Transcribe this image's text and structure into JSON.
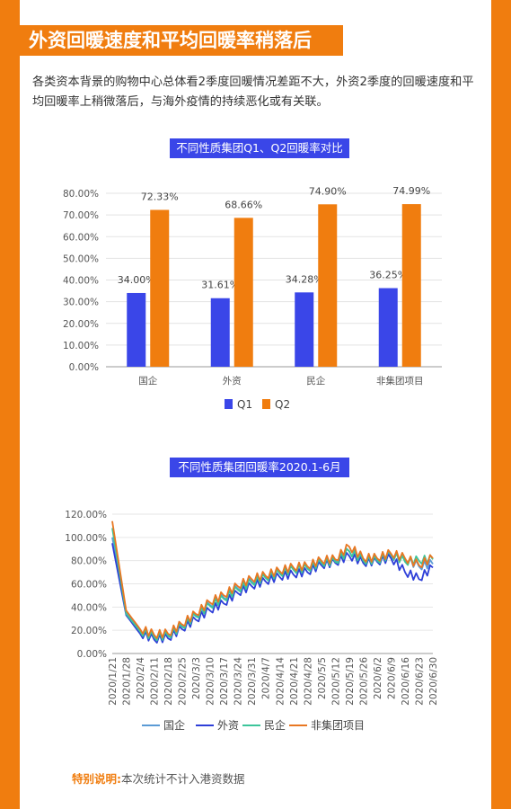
{
  "header": {
    "title": "外资回暖速度和平均回暖率稍落后"
  },
  "intro_text": "各类资本背景的购物中心总体看2季度回暖情况差距不大，外资2季度的回暖速度和平均回暖率上稍微落后，与海外疫情的持续恶化或有关联。",
  "colors": {
    "accent": "#F07D0F",
    "tag_bg": "#3A46E8",
    "q1": "#3A46E8",
    "q2": "#F07D0F",
    "guoqi": "#5B9BD5",
    "waizi": "#2E3FD8",
    "minqi": "#3CC59A",
    "feijituan": "#E87722"
  },
  "footnote": {
    "label": "特别说明:",
    "text": "本次统计不计入港资数据"
  },
  "chart_data": [
    {
      "type": "bar",
      "title": "不同性质集团Q1、Q2回暖率对比",
      "categories": [
        "国企",
        "外资",
        "民企",
        "非集团项目"
      ],
      "series": [
        {
          "name": "Q1",
          "values": [
            34.0,
            31.61,
            34.28,
            36.25
          ],
          "labels": [
            "34.00%",
            "31.61%",
            "34.28%",
            "36.25%"
          ]
        },
        {
          "name": "Q2",
          "values": [
            72.33,
            68.66,
            74.9,
            74.99
          ],
          "labels": [
            "72.33%",
            "68.66%",
            "74.90%",
            "74.99%"
          ]
        }
      ],
      "ylim": [
        0,
        80
      ],
      "yticks": [
        "0.00%",
        "10.00%",
        "20.00%",
        "30.00%",
        "40.00%",
        "50.00%",
        "60.00%",
        "70.00%",
        "80.00%"
      ],
      "grid": true,
      "legend": "bottom"
    },
    {
      "type": "line",
      "title": "不同性质集团回暖率2020.1-6月",
      "x_ticks": [
        "2020/1/21",
        "2020/1/28",
        "2020/2/4",
        "2020/2/11",
        "2020/2/18",
        "2020/2/25",
        "2020/3/3",
        "2020/3/10",
        "2020/3/17",
        "2020/3/24",
        "2020/3/31",
        "2020/4/7",
        "2020/4/14",
        "2020/4/21",
        "2020/4/28",
        "2020/5/5",
        "2020/5/12",
        "2020/5/19",
        "2020/5/26",
        "2020/6/2",
        "2020/6/9",
        "2020/6/16",
        "2020/6/23",
        "2020/6/30"
      ],
      "ylim": [
        0,
        120
      ],
      "yticks": [
        "0.00%",
        "20.00%",
        "40.00%",
        "60.00%",
        "80.00%",
        "100.00%",
        "120.00%"
      ],
      "series": [
        {
          "name": "国企",
          "values": [
            100,
            36,
            20,
            15,
            16,
            24,
            33,
            42,
            48,
            56,
            62,
            66,
            70,
            73,
            74,
            79,
            80,
            88,
            81,
            81,
            84,
            81,
            75,
            77
          ]
        },
        {
          "name": "外资",
          "values": [
            95,
            33,
            17,
            12,
            13,
            21,
            29,
            37,
            43,
            52,
            58,
            62,
            66,
            68,
            70,
            76,
            78,
            84,
            78,
            79,
            82,
            70,
            64,
            74
          ]
        },
        {
          "name": "民企",
          "values": [
            108,
            34,
            19,
            14,
            15,
            23,
            32,
            41,
            47,
            55,
            61,
            65,
            69,
            72,
            73,
            78,
            79,
            88,
            80,
            80,
            85,
            79,
            80,
            81
          ]
        },
        {
          "name": "非集团项目",
          "values": [
            114,
            37,
            21,
            16,
            17,
            25,
            34,
            44,
            50,
            58,
            64,
            67,
            71,
            74,
            75,
            80,
            81,
            92,
            82,
            82,
            86,
            82,
            76,
            82
          ]
        }
      ],
      "grid": true,
      "legend": "bottom"
    }
  ]
}
